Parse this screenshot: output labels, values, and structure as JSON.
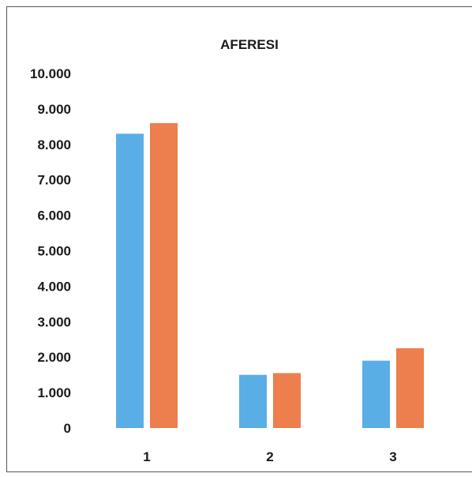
{
  "chart_data": {
    "type": "bar",
    "title": "AFERESI",
    "xlabel": "",
    "ylabel": "",
    "categories": [
      "1",
      "2",
      "3"
    ],
    "series": [
      {
        "color": "#5aaee6",
        "values": [
          8300,
          1500,
          1900
        ]
      },
      {
        "color": "#ec7f4d",
        "values": [
          8600,
          1550,
          2250
        ]
      }
    ],
    "ylim": [
      0,
      10000
    ],
    "yticks": [
      "0",
      "1.000",
      "2.000",
      "3.000",
      "4.000",
      "5.000",
      "6.000",
      "7.000",
      "8.000",
      "9.000",
      "10.000"
    ],
    "grid": false,
    "legend": "none"
  }
}
